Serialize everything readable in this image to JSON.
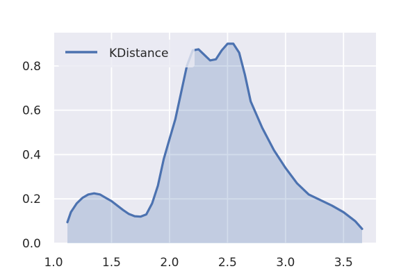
{
  "chart_data": {
    "type": "area",
    "title": "",
    "xlabel": "",
    "ylabel": "",
    "xlim": [
      1.0,
      3.78
    ],
    "ylim": [
      0.0,
      0.95
    ],
    "xticks": [
      1.0,
      1.5,
      2.0,
      2.5,
      3.0,
      3.5
    ],
    "xtick_labels": [
      "1.0",
      "1.5",
      "2.0",
      "2.5",
      "3.0",
      "3.5"
    ],
    "yticks": [
      0.0,
      0.2,
      0.4,
      0.6,
      0.8
    ],
    "ytick_labels": [
      "0.0",
      "0.2",
      "0.4",
      "0.6",
      "0.8"
    ],
    "grid": true,
    "legend_position": "top-left",
    "series": [
      {
        "name": "KDistance",
        "color": "#4c72b0",
        "fill_color": "#4c72b0",
        "x": [
          1.12,
          1.15,
          1.2,
          1.25,
          1.3,
          1.35,
          1.4,
          1.45,
          1.5,
          1.55,
          1.6,
          1.65,
          1.7,
          1.75,
          1.8,
          1.85,
          1.9,
          1.95,
          2.0,
          2.05,
          2.1,
          2.15,
          2.2,
          2.25,
          2.28,
          2.3,
          2.35,
          2.4,
          2.45,
          2.5,
          2.55,
          2.6,
          2.65,
          2.7,
          2.8,
          2.9,
          3.0,
          3.1,
          3.2,
          3.3,
          3.4,
          3.5,
          3.6,
          3.66
        ],
        "y": [
          0.095,
          0.14,
          0.18,
          0.205,
          0.22,
          0.225,
          0.22,
          0.205,
          0.19,
          0.17,
          0.15,
          0.132,
          0.122,
          0.12,
          0.13,
          0.18,
          0.26,
          0.38,
          0.47,
          0.56,
          0.68,
          0.8,
          0.87,
          0.875,
          0.86,
          0.85,
          0.825,
          0.83,
          0.87,
          0.9,
          0.9,
          0.86,
          0.76,
          0.64,
          0.52,
          0.42,
          0.34,
          0.27,
          0.22,
          0.195,
          0.17,
          0.14,
          0.1,
          0.065
        ]
      }
    ]
  }
}
